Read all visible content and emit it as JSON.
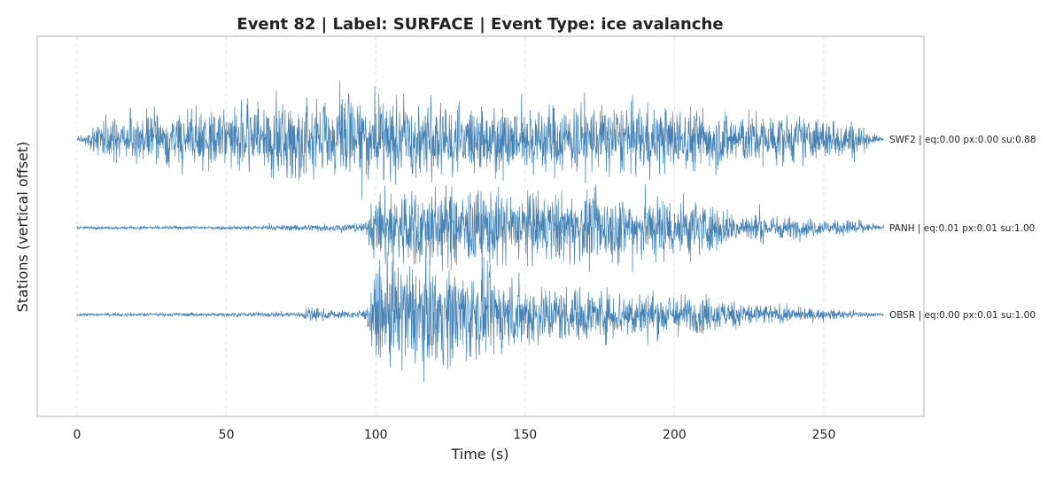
{
  "chart_data": {
    "type": "line",
    "title": "Event 82 | Label: SURFACE | Event Type: ice avalanche",
    "xlabel": "Time (s)",
    "ylabel": "Stations (vertical offset)",
    "xlim": [
      -13.5,
      283.5
    ],
    "xticks": [
      0,
      50,
      100,
      150,
      200,
      250
    ],
    "grid": true,
    "color": "#4682b4",
    "series": [
      {
        "name": "SWF2",
        "label": "SWF2 | eq:0.00 px:0.00 su:0.88",
        "duration_s": 270,
        "envelope": [
          [
            0,
            2
          ],
          [
            3,
            10
          ],
          [
            10,
            30
          ],
          [
            25,
            38
          ],
          [
            40,
            40
          ],
          [
            55,
            48
          ],
          [
            70,
            52
          ],
          [
            85,
            58
          ],
          [
            95,
            64
          ],
          [
            110,
            56
          ],
          [
            130,
            52
          ],
          [
            150,
            50
          ],
          [
            170,
            50
          ],
          [
            190,
            48
          ],
          [
            210,
            44
          ],
          [
            230,
            36
          ],
          [
            250,
            30
          ],
          [
            260,
            26
          ],
          [
            265,
            10
          ],
          [
            270,
            2
          ]
        ]
      },
      {
        "name": "PANH",
        "label": "PANH | eq:0.01 px:0.01 su:1.00",
        "duration_s": 270,
        "envelope": [
          [
            0,
            2
          ],
          [
            60,
            3
          ],
          [
            75,
            5
          ],
          [
            90,
            6
          ],
          [
            97,
            8
          ],
          [
            98,
            35
          ],
          [
            105,
            60
          ],
          [
            115,
            58
          ],
          [
            130,
            55
          ],
          [
            150,
            50
          ],
          [
            170,
            48
          ],
          [
            190,
            48
          ],
          [
            205,
            45
          ],
          [
            220,
            22
          ],
          [
            240,
            15
          ],
          [
            255,
            10
          ],
          [
            262,
            14
          ],
          [
            265,
            5
          ],
          [
            270,
            2
          ]
        ]
      },
      {
        "name": "OBSR",
        "label": "OBSR | eq:0.00 px:0.01 su:1.00",
        "duration_s": 270,
        "envelope": [
          [
            0,
            2
          ],
          [
            60,
            3
          ],
          [
            75,
            5
          ],
          [
            78,
            12
          ],
          [
            82,
            8
          ],
          [
            90,
            5
          ],
          [
            97,
            8
          ],
          [
            98,
            40
          ],
          [
            105,
            80
          ],
          [
            115,
            72
          ],
          [
            130,
            70
          ],
          [
            140,
            55
          ],
          [
            160,
            40
          ],
          [
            180,
            35
          ],
          [
            200,
            30
          ],
          [
            220,
            20
          ],
          [
            240,
            10
          ],
          [
            260,
            5
          ],
          [
            270,
            2
          ]
        ]
      }
    ]
  }
}
